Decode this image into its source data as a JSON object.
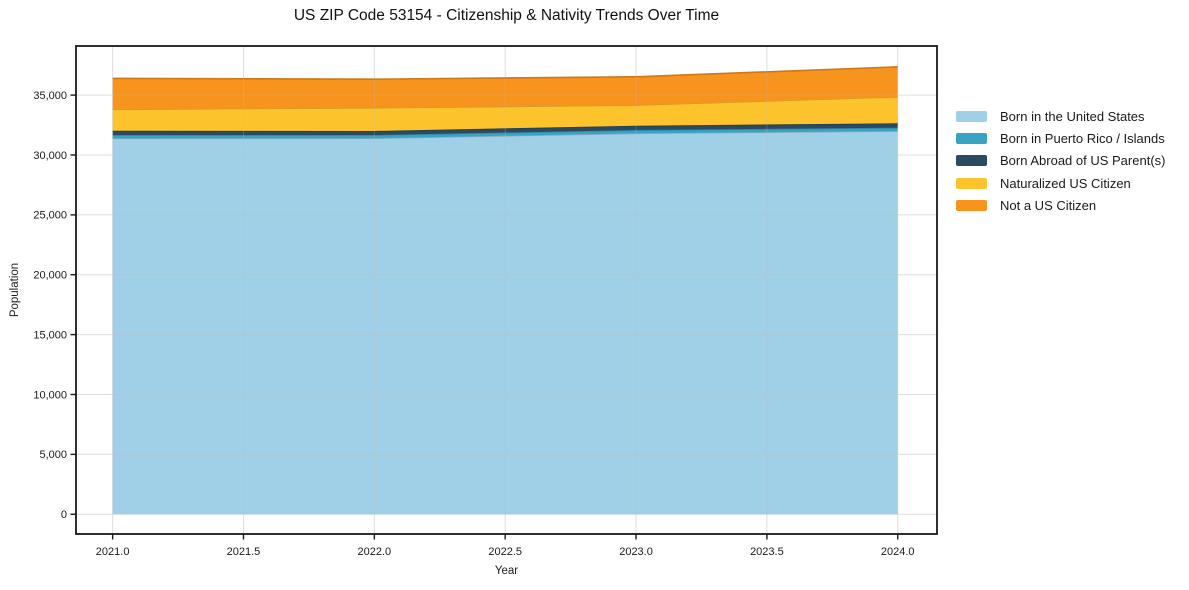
{
  "chart_data": {
    "type": "area",
    "stacked": true,
    "title": "US ZIP Code 53154 - Citizenship & Nativity Trends Over Time",
    "xlabel": "Year",
    "ylabel": "Population",
    "x": [
      2021,
      2022,
      2023,
      2024
    ],
    "series": [
      {
        "name": "Born in the United States",
        "color": "#9FD0E7",
        "values": [
          31390,
          31400,
          31810,
          32000
        ]
      },
      {
        "name": "Born in Puerto Rico / Islands",
        "color": "#39A3C3",
        "values": [
          280,
          270,
          275,
          275
        ]
      },
      {
        "name": "Born Abroad of US Parent(s)",
        "color": "#2B4A60",
        "values": [
          355,
          335,
          360,
          370
        ]
      },
      {
        "name": "Naturalized US Citizen",
        "color": "#FCC32D",
        "values": [
          1785,
          1935,
          1720,
          2215
        ]
      },
      {
        "name": "Not a US Citizen",
        "color": "#F7941E",
        "values": [
          2585,
          2390,
          2360,
          2500
        ]
      }
    ],
    "cumulative_totals": [
      36395,
      36330,
      36525,
      37360
    ],
    "x_tick_values": [
      2021.0,
      2021.5,
      2022.0,
      2022.5,
      2023.0,
      2023.5,
      2024.0
    ],
    "x_tick_labels": [
      "2021.0",
      "2021.5",
      "2022.0",
      "2022.5",
      "2023.0",
      "2023.5",
      "2024.0"
    ],
    "y_tick_values": [
      0,
      5000,
      10000,
      15000,
      20000,
      25000,
      30000,
      35000
    ],
    "y_tick_labels": [
      "0",
      "5,000",
      "10,000",
      "15,000",
      "20,000",
      "25,000",
      "30,000",
      "35,000"
    ],
    "xlim": [
      2020.86,
      2024.15
    ],
    "ylim": [
      -1650,
      39100
    ],
    "grid": true,
    "legend_position": "right"
  },
  "colors": {
    "axis": "#1a1a1a",
    "text": "#1a1a1a",
    "grid_under": "#ececec",
    "grid_over": "rgba(190,190,190,0.28)",
    "background": "#ffffff"
  }
}
